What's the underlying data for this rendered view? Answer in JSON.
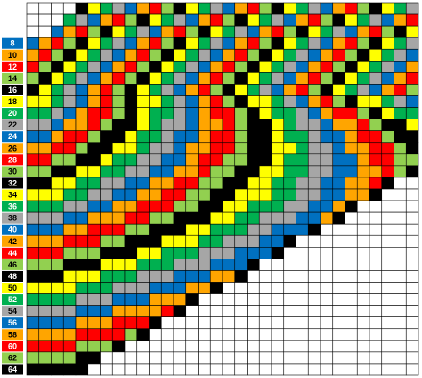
{
  "row_labels": [
    "8",
    "10",
    "12",
    "14",
    "16",
    "18",
    "20",
    "22",
    "24",
    "26",
    "28",
    "30",
    "32",
    "34",
    "36",
    "38",
    "40",
    "42",
    "44",
    "46",
    "48",
    "50",
    "52",
    "54",
    "56",
    "58",
    "60",
    "62",
    "64"
  ]
}
